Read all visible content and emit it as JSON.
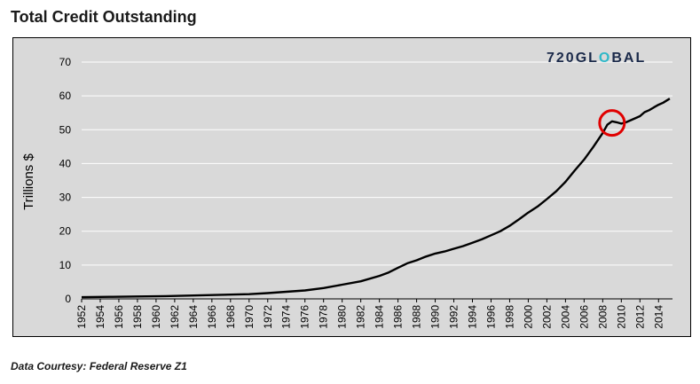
{
  "header": {
    "title": "Total Credit Outstanding"
  },
  "footer": {
    "source": "Data Courtesy: Federal Reserve Z1"
  },
  "logo": {
    "left": "720GL",
    "mark": "O",
    "right": "BAL"
  },
  "colors": {
    "plot_bg": "#d9d9d9",
    "line": "#000000",
    "circle": "#e00000",
    "logo_text": "#1b2a4a",
    "logo_mark": "#2fb8c8",
    "gridline": "#ffffff"
  },
  "chart_data": {
    "type": "line",
    "title": "Total Credit Outstanding",
    "xlabel": "",
    "ylabel": "Trillions $",
    "xlim": [
      1952,
      2015.5
    ],
    "ylim": [
      0,
      70
    ],
    "yticks": [
      0,
      10,
      20,
      30,
      40,
      50,
      60,
      70
    ],
    "xticks": [
      1952,
      1954,
      1956,
      1958,
      1960,
      1962,
      1964,
      1966,
      1968,
      1970,
      1972,
      1974,
      1976,
      1978,
      1980,
      1982,
      1984,
      1986,
      1988,
      1990,
      1992,
      1994,
      1996,
      1998,
      2000,
      2002,
      2004,
      2006,
      2008,
      2010,
      2012,
      2014
    ],
    "grid": "horizontal",
    "highlight": {
      "x": 2009,
      "y": 52,
      "shape": "circle"
    },
    "series": [
      {
        "x": [
          1952,
          1955,
          1958,
          1961,
          1964,
          1967,
          1970,
          1972,
          1974,
          1976,
          1978,
          1980,
          1982,
          1984,
          1985,
          1986,
          1987,
          1988,
          1989,
          1990,
          1991,
          1992,
          1993,
          1994,
          1995,
          1996,
          1997,
          1998,
          1999,
          2000,
          2001,
          2002,
          2003,
          2004,
          2005,
          2006,
          2007,
          2008,
          2008.5,
          2009,
          2009.5,
          2010,
          2010.5,
          2011,
          2012,
          2012.5,
          2013,
          2013.5,
          2014,
          2014.5,
          2015.2
        ],
        "y": [
          0.5,
          0.6,
          0.7,
          0.8,
          1.0,
          1.2,
          1.4,
          1.7,
          2.1,
          2.5,
          3.2,
          4.2,
          5.2,
          6.8,
          7.8,
          9.2,
          10.5,
          11.4,
          12.5,
          13.4,
          14.0,
          14.8,
          15.6,
          16.6,
          17.6,
          18.8,
          20.0,
          21.6,
          23.5,
          25.5,
          27.3,
          29.5,
          31.8,
          34.6,
          38.0,
          41.2,
          45.0,
          49.0,
          51.5,
          52.5,
          52.2,
          51.8,
          52.2,
          52.8,
          54.0,
          55.2,
          55.8,
          56.6,
          57.4,
          58.0,
          59.2
        ]
      }
    ]
  }
}
